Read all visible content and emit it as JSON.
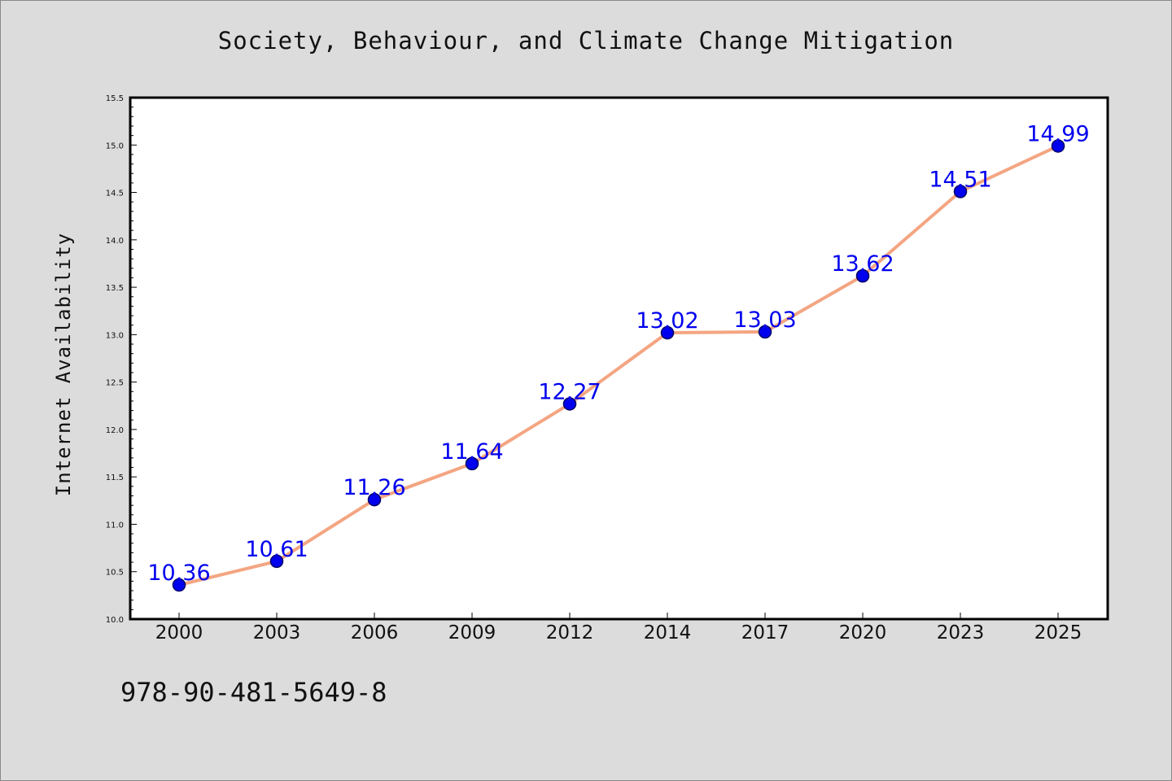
{
  "chart_data": {
    "type": "line",
    "title": "Society, Behaviour, and Climate Change Mitigation",
    "xlabel": "",
    "ylabel": "Internet Availability",
    "categories": [
      "2000",
      "2003",
      "2006",
      "2009",
      "2012",
      "2014",
      "2017",
      "2020",
      "2023",
      "2025"
    ],
    "series": [
      {
        "values": [
          10.36,
          10.61,
          11.26,
          11.64,
          12.27,
          13.02,
          13.03,
          13.62,
          14.51,
          14.99
        ],
        "data_labels": [
          "10.36",
          "10.61",
          "11.26",
          "11.64",
          "12.27",
          "13.02",
          "13.03",
          "13.62",
          "14.51",
          "14.99"
        ]
      }
    ],
    "ylim": [
      10.0,
      15.5
    ],
    "yticks": [
      "10.0",
      "10.5",
      "11.0",
      "11.5",
      "12.0",
      "12.5",
      "13.0",
      "13.5",
      "14.0",
      "14.5",
      "15.0",
      "15.5"
    ],
    "grid": false,
    "legend": "none",
    "colors": {
      "line": "#f4a582",
      "marker_fill": "#0000ee",
      "marker_edge": "#000066",
      "data_label": "#0000ee",
      "background": "#dcdcdc",
      "plot_background": "#ffffff"
    }
  },
  "footer": {
    "isbn": "978-90-481-5649-8"
  }
}
